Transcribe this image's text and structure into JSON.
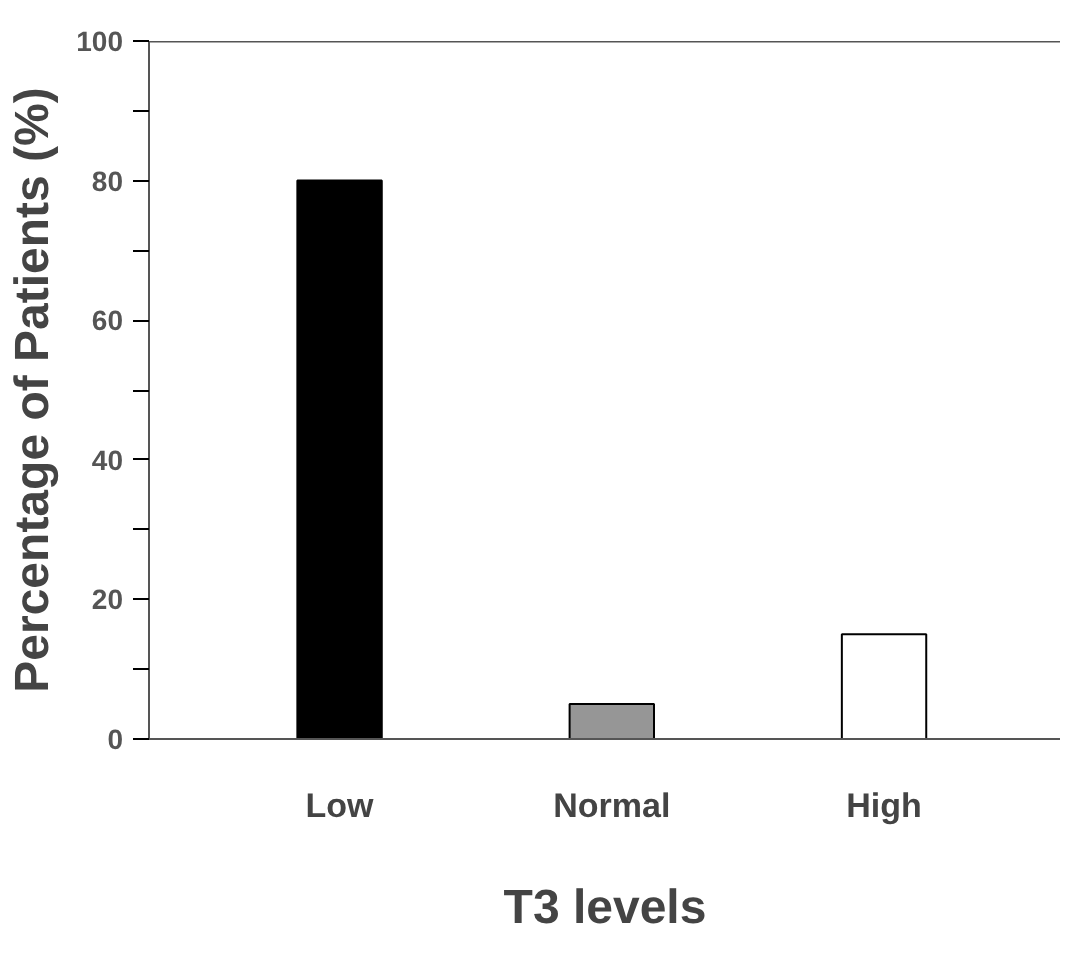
{
  "chart_data": {
    "type": "bar",
    "xlabel": "T3 levels",
    "ylabel": "Percentage of Patients (%)",
    "categories": [
      "Low",
      "Normal",
      "High"
    ],
    "values": [
      80,
      5,
      15
    ],
    "colors": [
      "#000000",
      "#969696",
      "#ffffff"
    ],
    "ylim": [
      0,
      100
    ],
    "yticks": [
      0,
      {
        "value": 10,
        "label": null
      },
      20,
      {
        "value": 30,
        "label": null
      },
      40,
      {
        "value": 50,
        "label": null
      },
      60,
      {
        "value": 70,
        "label": null
      },
      80,
      {
        "value": 90,
        "label": null
      },
      100
    ],
    "grid": false
  }
}
